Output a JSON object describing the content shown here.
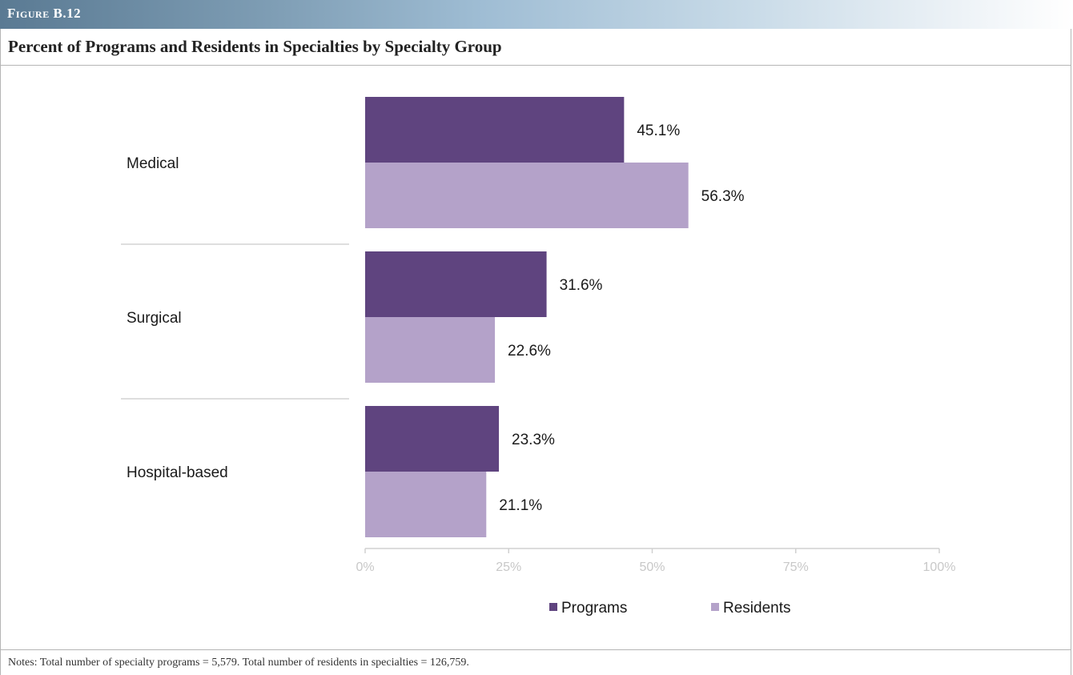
{
  "figure_label": "Figure B.12",
  "title": "Percent of Programs and Residents in Specialties by Specialty Group",
  "notes": "Notes: Total number of specialty programs = 5,579. Total number of residents in specialties = 126,759.",
  "chart_data": {
    "type": "bar",
    "orientation": "horizontal",
    "categories": [
      "Medical",
      "Surgical",
      "Hospital-based"
    ],
    "series": [
      {
        "name": "Programs",
        "values": [
          45.1,
          31.6,
          23.3
        ],
        "labels": [
          "45.1%",
          "31.6%",
          "23.3%"
        ],
        "color": "#5f447f"
      },
      {
        "name": "Residents",
        "values": [
          56.3,
          22.6,
          21.1
        ],
        "labels": [
          "56.3%",
          "22.6%",
          "21.1%"
        ],
        "color": "#b4a2c9"
      }
    ],
    "xlim": [
      0,
      100
    ],
    "ticks": [
      "0%",
      "25%",
      "50%",
      "75%",
      "100%"
    ],
    "legend": "bottom",
    "grid": false
  }
}
